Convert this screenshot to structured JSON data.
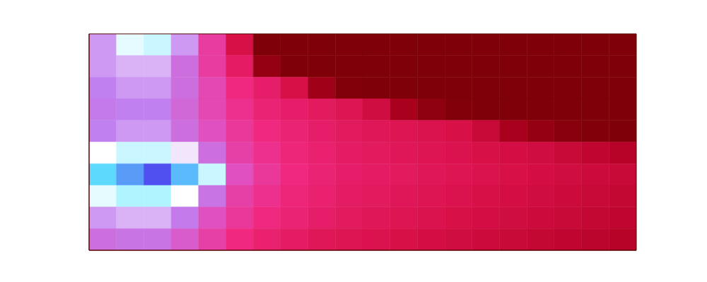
{
  "chart_data": {
    "type": "heatmap",
    "tick_labels": false,
    "xlim": [
      0,
      20
    ],
    "ylim": [
      0,
      10
    ],
    "color_range": [
      0,
      1
    ],
    "cells": [
      [
        0.6,
        0.7,
        0.72,
        0.6,
        0.45,
        0.3,
        0.05,
        0.05,
        0.05,
        0.05,
        0.05,
        0.05,
        0.05,
        0.05,
        0.05,
        0.05,
        0.05,
        0.05,
        0.05,
        0.05
      ],
      [
        0.6,
        0.62,
        0.62,
        0.55,
        0.45,
        0.35,
        0.12,
        0.05,
        0.05,
        0.05,
        0.05,
        0.05,
        0.05,
        0.05,
        0.05,
        0.05,
        0.05,
        0.05,
        0.05,
        0.05
      ],
      [
        0.58,
        0.6,
        0.6,
        0.55,
        0.48,
        0.4,
        0.36,
        0.3,
        0.15,
        0.06,
        0.05,
        0.05,
        0.05,
        0.05,
        0.05,
        0.05,
        0.05,
        0.05,
        0.05,
        0.05
      ],
      [
        0.57,
        0.58,
        0.58,
        0.54,
        0.48,
        0.42,
        0.38,
        0.36,
        0.34,
        0.32,
        0.28,
        0.18,
        0.1,
        0.06,
        0.05,
        0.05,
        0.05,
        0.05,
        0.05,
        0.05
      ],
      [
        0.58,
        0.6,
        0.6,
        0.55,
        0.5,
        0.44,
        0.4,
        0.38,
        0.36,
        0.34,
        0.33,
        0.32,
        0.31,
        0.3,
        0.26,
        0.18,
        0.12,
        0.08,
        0.06,
        0.05
      ],
      [
        0.68,
        0.72,
        0.72,
        0.66,
        0.55,
        0.46,
        0.42,
        0.39,
        0.37,
        0.35,
        0.34,
        0.33,
        0.32,
        0.31,
        0.3,
        0.29,
        0.28,
        0.26,
        0.24,
        0.22
      ],
      [
        0.82,
        0.9,
        1.0,
        0.86,
        0.72,
        0.5,
        0.44,
        0.4,
        0.38,
        0.36,
        0.35,
        0.34,
        0.33,
        0.32,
        0.31,
        0.3,
        0.29,
        0.28,
        0.27,
        0.26
      ],
      [
        0.7,
        0.74,
        0.74,
        0.68,
        0.56,
        0.46,
        0.42,
        0.39,
        0.37,
        0.35,
        0.34,
        0.33,
        0.32,
        0.31,
        0.3,
        0.29,
        0.28,
        0.27,
        0.26,
        0.25
      ],
      [
        0.6,
        0.62,
        0.62,
        0.57,
        0.5,
        0.44,
        0.4,
        0.38,
        0.36,
        0.34,
        0.33,
        0.32,
        0.31,
        0.3,
        0.29,
        0.28,
        0.27,
        0.26,
        0.25,
        0.24
      ],
      [
        0.55,
        0.56,
        0.56,
        0.52,
        0.46,
        0.4,
        0.37,
        0.35,
        0.33,
        0.32,
        0.31,
        0.3,
        0.29,
        0.28,
        0.27,
        0.26,
        0.25,
        0.24,
        0.23,
        0.22
      ]
    ]
  }
}
